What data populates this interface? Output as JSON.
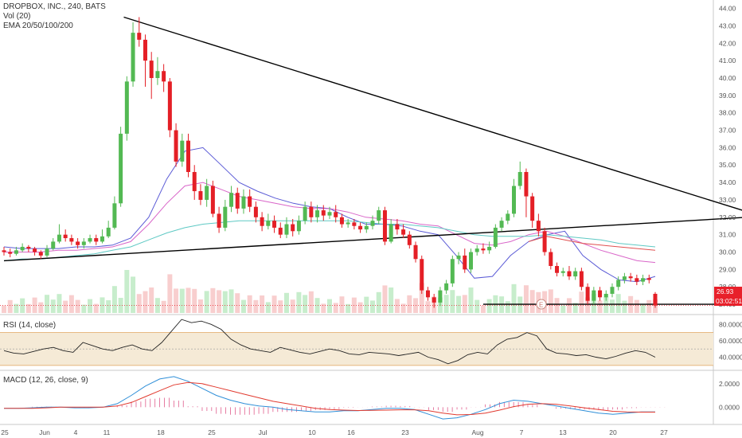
{
  "legend": {
    "title": "DROPBOX, INC., 240, BATS",
    "vol": "Vol (20)",
    "ema": "EMA 20/50/100/200"
  },
  "rsi_label": "RSI (14, close)",
  "macd_label": "MACD (12, 26, close, 9)",
  "price_tag": "26.93",
  "timer_tag": "03:02:51",
  "earnings_marker": "E",
  "chart_data": [
    {
      "type": "candlestick",
      "title": "DROPBOX, INC., 240, BATS",
      "ylim": [
        26.5,
        44.3
      ],
      "price_axis_ticks": [
        "44.00",
        "43.00",
        "42.00",
        "41.00",
        "40.00",
        "39.00",
        "38.00",
        "37.00",
        "36.00",
        "35.00",
        "34.00",
        "33.00",
        "32.00",
        "31.00",
        "30.00",
        "29.00",
        "28.00",
        "27.00"
      ],
      "x_tick_labels": [
        "25",
        "Jun",
        "4",
        "11",
        "18",
        "25",
        "Jul",
        "10",
        "16",
        "23",
        "Aug",
        "7",
        "13",
        "20",
        "27"
      ],
      "last_price": 26.93,
      "candles": [
        {
          "o": 30.1,
          "c": 30.0,
          "h": 30.3,
          "l": 29.8
        },
        {
          "o": 30.0,
          "c": 29.9,
          "h": 30.2,
          "l": 29.7
        },
        {
          "o": 29.9,
          "c": 30.1,
          "h": 30.3,
          "l": 29.8
        },
        {
          "o": 30.1,
          "c": 30.3,
          "h": 30.5,
          "l": 30.0
        },
        {
          "o": 30.3,
          "c": 30.2,
          "h": 30.4,
          "l": 30.0
        },
        {
          "o": 30.2,
          "c": 30.0,
          "h": 30.3,
          "l": 29.8
        },
        {
          "o": 30.0,
          "c": 29.8,
          "h": 30.1,
          "l": 29.6
        },
        {
          "o": 29.8,
          "c": 30.2,
          "h": 30.4,
          "l": 29.7
        },
        {
          "o": 30.2,
          "c": 30.6,
          "h": 30.8,
          "l": 30.1
        },
        {
          "o": 30.6,
          "c": 31.0,
          "h": 31.6,
          "l": 30.5
        },
        {
          "o": 31.0,
          "c": 30.8,
          "h": 31.3,
          "l": 30.6
        },
        {
          "o": 30.8,
          "c": 30.6,
          "h": 31.0,
          "l": 30.4
        },
        {
          "o": 30.6,
          "c": 30.4,
          "h": 30.8,
          "l": 30.2
        },
        {
          "o": 30.4,
          "c": 30.6,
          "h": 30.8,
          "l": 30.2
        },
        {
          "o": 30.6,
          "c": 30.8,
          "h": 31.0,
          "l": 30.5
        },
        {
          "o": 30.8,
          "c": 30.6,
          "h": 31.0,
          "l": 30.4
        },
        {
          "o": 30.6,
          "c": 30.9,
          "h": 31.3,
          "l": 30.5
        },
        {
          "o": 30.9,
          "c": 31.4,
          "h": 31.8,
          "l": 30.8
        },
        {
          "o": 31.4,
          "c": 32.8,
          "h": 33.2,
          "l": 31.3
        },
        {
          "o": 32.8,
          "c": 36.8,
          "h": 37.2,
          "l": 32.6
        },
        {
          "o": 36.8,
          "c": 39.8,
          "h": 40.1,
          "l": 36.4
        },
        {
          "o": 39.8,
          "c": 42.6,
          "h": 43.2,
          "l": 39.5
        },
        {
          "o": 42.6,
          "c": 42.2,
          "h": 43.5,
          "l": 41.8
        },
        {
          "o": 42.2,
          "c": 41.0,
          "h": 42.5,
          "l": 39.5
        },
        {
          "o": 41.0,
          "c": 40.0,
          "h": 41.5,
          "l": 38.8
        },
        {
          "o": 40.0,
          "c": 40.4,
          "h": 41.2,
          "l": 39.6
        },
        {
          "o": 40.4,
          "c": 39.8,
          "h": 40.8,
          "l": 39.2
        },
        {
          "o": 39.8,
          "c": 37.0,
          "h": 40.0,
          "l": 36.6
        },
        {
          "o": 37.0,
          "c": 35.2,
          "h": 37.4,
          "l": 34.9
        },
        {
          "o": 35.2,
          "c": 36.4,
          "h": 36.8,
          "l": 34.9
        },
        {
          "o": 36.4,
          "c": 34.6,
          "h": 36.8,
          "l": 34.3
        },
        {
          "o": 34.6,
          "c": 33.5,
          "h": 35.0,
          "l": 33.0
        },
        {
          "o": 33.5,
          "c": 33.0,
          "h": 33.9,
          "l": 32.7
        },
        {
          "o": 33.0,
          "c": 33.8,
          "h": 34.2,
          "l": 32.6
        },
        {
          "o": 33.8,
          "c": 32.2,
          "h": 34.1,
          "l": 32.0
        },
        {
          "o": 32.2,
          "c": 31.4,
          "h": 32.6,
          "l": 31.1
        },
        {
          "o": 31.4,
          "c": 32.6,
          "h": 33.0,
          "l": 31.2
        },
        {
          "o": 32.6,
          "c": 33.4,
          "h": 33.8,
          "l": 32.3
        },
        {
          "o": 33.4,
          "c": 32.5,
          "h": 33.7,
          "l": 32.2
        },
        {
          "o": 32.5,
          "c": 33.2,
          "h": 33.6,
          "l": 32.2
        },
        {
          "o": 33.2,
          "c": 32.6,
          "h": 33.6,
          "l": 32.3
        },
        {
          "o": 32.6,
          "c": 32.0,
          "h": 32.9,
          "l": 31.7
        },
        {
          "o": 32.0,
          "c": 31.5,
          "h": 32.3,
          "l": 31.2
        },
        {
          "o": 31.5,
          "c": 31.8,
          "h": 32.2,
          "l": 31.3
        },
        {
          "o": 31.8,
          "c": 31.4,
          "h": 32.1,
          "l": 31.1
        },
        {
          "o": 31.4,
          "c": 31.0,
          "h": 31.7,
          "l": 30.8
        },
        {
          "o": 31.0,
          "c": 31.6,
          "h": 32.0,
          "l": 30.8
        },
        {
          "o": 31.6,
          "c": 31.2,
          "h": 31.9,
          "l": 30.9
        },
        {
          "o": 31.2,
          "c": 31.8,
          "h": 32.1,
          "l": 31.0
        },
        {
          "o": 31.8,
          "c": 32.6,
          "h": 32.9,
          "l": 31.6
        },
        {
          "o": 32.6,
          "c": 32.0,
          "h": 32.9,
          "l": 31.7
        },
        {
          "o": 32.0,
          "c": 32.4,
          "h": 32.7,
          "l": 31.7
        },
        {
          "o": 32.4,
          "c": 32.1,
          "h": 32.7,
          "l": 31.8
        },
        {
          "o": 32.1,
          "c": 32.3,
          "h": 32.6,
          "l": 31.9
        },
        {
          "o": 32.3,
          "c": 32.0,
          "h": 32.7,
          "l": 31.7
        },
        {
          "o": 32.0,
          "c": 31.6,
          "h": 32.2,
          "l": 31.4
        },
        {
          "o": 31.6,
          "c": 31.7,
          "h": 31.9,
          "l": 31.4
        },
        {
          "o": 31.7,
          "c": 31.5,
          "h": 31.9,
          "l": 31.3
        },
        {
          "o": 31.5,
          "c": 31.3,
          "h": 31.7,
          "l": 31.1
        },
        {
          "o": 31.3,
          "c": 31.5,
          "h": 31.7,
          "l": 31.1
        },
        {
          "o": 31.5,
          "c": 31.8,
          "h": 32.1,
          "l": 31.3
        },
        {
          "o": 31.8,
          "c": 32.4,
          "h": 32.6,
          "l": 31.6
        },
        {
          "o": 32.4,
          "c": 30.6,
          "h": 32.6,
          "l": 30.4
        },
        {
          "o": 30.6,
          "c": 31.6,
          "h": 31.9,
          "l": 30.5
        },
        {
          "o": 31.6,
          "c": 31.3,
          "h": 31.9,
          "l": 31.0
        },
        {
          "o": 31.3,
          "c": 31.0,
          "h": 31.6,
          "l": 30.8
        },
        {
          "o": 31.0,
          "c": 30.4,
          "h": 31.2,
          "l": 30.2
        },
        {
          "o": 30.4,
          "c": 29.6,
          "h": 30.6,
          "l": 29.4
        },
        {
          "o": 29.6,
          "c": 27.8,
          "h": 29.8,
          "l": 27.6
        },
        {
          "o": 27.8,
          "c": 27.4,
          "h": 28.0,
          "l": 27.2
        },
        {
          "o": 27.4,
          "c": 27.1,
          "h": 27.6,
          "l": 26.8
        },
        {
          "o": 27.1,
          "c": 27.8,
          "h": 28.0,
          "l": 26.9
        },
        {
          "o": 27.8,
          "c": 28.2,
          "h": 28.4,
          "l": 27.6
        },
        {
          "o": 28.2,
          "c": 29.6,
          "h": 29.8,
          "l": 28.0
        },
        {
          "o": 29.6,
          "c": 29.8,
          "h": 30.0,
          "l": 29.3
        },
        {
          "o": 29.8,
          "c": 29.0,
          "h": 30.2,
          "l": 28.8
        },
        {
          "o": 29.0,
          "c": 30.0,
          "h": 30.2,
          "l": 28.8
        },
        {
          "o": 30.0,
          "c": 30.2,
          "h": 30.4,
          "l": 29.8
        },
        {
          "o": 30.2,
          "c": 30.1,
          "h": 30.5,
          "l": 29.9
        },
        {
          "o": 30.1,
          "c": 30.3,
          "h": 30.6,
          "l": 29.9
        },
        {
          "o": 30.3,
          "c": 31.4,
          "h": 31.6,
          "l": 30.2
        },
        {
          "o": 31.4,
          "c": 31.8,
          "h": 32.0,
          "l": 31.2
        },
        {
          "o": 31.8,
          "c": 32.2,
          "h": 32.4,
          "l": 31.6
        },
        {
          "o": 32.2,
          "c": 33.8,
          "h": 34.2,
          "l": 32.0
        },
        {
          "o": 33.8,
          "c": 34.6,
          "h": 35.2,
          "l": 33.6
        },
        {
          "o": 34.6,
          "c": 33.2,
          "h": 34.8,
          "l": 32.0
        },
        {
          "o": 33.2,
          "c": 31.8,
          "h": 33.4,
          "l": 31.4
        },
        {
          "o": 31.8,
          "c": 31.2,
          "h": 32.2,
          "l": 30.9
        },
        {
          "o": 31.2,
          "c": 30.0,
          "h": 31.4,
          "l": 29.8
        },
        {
          "o": 30.0,
          "c": 29.2,
          "h": 30.2,
          "l": 29.0
        },
        {
          "o": 29.2,
          "c": 28.8,
          "h": 29.4,
          "l": 28.6
        },
        {
          "o": 28.8,
          "c": 28.9,
          "h": 29.1,
          "l": 28.6
        },
        {
          "o": 28.9,
          "c": 28.6,
          "h": 29.2,
          "l": 28.4
        },
        {
          "o": 28.6,
          "c": 28.9,
          "h": 29.1,
          "l": 28.4
        },
        {
          "o": 28.9,
          "c": 28.0,
          "h": 29.1,
          "l": 27.8
        },
        {
          "o": 28.0,
          "c": 27.2,
          "h": 28.2,
          "l": 27.0
        },
        {
          "o": 27.2,
          "c": 27.8,
          "h": 28.0,
          "l": 27.0
        },
        {
          "o": 27.8,
          "c": 27.4,
          "h": 28.0,
          "l": 27.2
        },
        {
          "o": 27.4,
          "c": 27.6,
          "h": 27.8,
          "l": 27.2
        },
        {
          "o": 27.6,
          "c": 28.0,
          "h": 28.2,
          "l": 27.4
        },
        {
          "o": 28.0,
          "c": 28.4,
          "h": 28.6,
          "l": 27.8
        },
        {
          "o": 28.4,
          "c": 28.6,
          "h": 28.8,
          "l": 28.2
        },
        {
          "o": 28.6,
          "c": 28.5,
          "h": 28.8,
          "l": 28.3
        },
        {
          "o": 28.5,
          "c": 28.3,
          "h": 28.7,
          "l": 28.1
        },
        {
          "o": 28.3,
          "c": 28.5,
          "h": 28.7,
          "l": 28.1
        },
        {
          "o": 28.5,
          "c": 28.4,
          "h": 28.7,
          "l": 28.2
        },
        {
          "o": 27.6,
          "c": 26.93,
          "h": 27.7,
          "l": 26.8
        }
      ],
      "ema": [
        {
          "name": "EMA 20",
          "color": "#5b5bd6",
          "values": [
            30.3,
            30.2,
            30.2,
            30.2,
            30.3,
            30.3,
            30.4,
            30.8,
            32.0,
            34.2,
            35.8,
            36.0,
            35.0,
            34.0,
            33.5,
            33.1,
            32.8,
            32.6,
            32.5,
            32.0,
            31.6,
            31.6,
            31.5,
            31.2,
            31.0,
            29.8,
            28.5,
            28.6,
            29.8,
            30.6,
            31.0,
            31.2,
            29.8,
            29.0,
            28.4,
            28.3,
            28.6
          ]
        },
        {
          "name": "EMA 50",
          "color": "#d966c9",
          "values": [
            30.0,
            30.0,
            30.0,
            30.1,
            30.1,
            30.2,
            30.3,
            30.6,
            31.6,
            32.8,
            33.8,
            34.0,
            33.6,
            33.2,
            33.0,
            32.8,
            32.6,
            32.5,
            32.5,
            32.3,
            32.0,
            31.9,
            31.8,
            31.6,
            31.5,
            31.0,
            30.5,
            30.4,
            30.6,
            31.0,
            31.2,
            30.9,
            30.5,
            30.1,
            29.8,
            29.5,
            29.4
          ]
        },
        {
          "name": "EMA 100",
          "color": "#e05050",
          "values": [
            null,
            null,
            null,
            null,
            null,
            null,
            null,
            null,
            null,
            null,
            null,
            null,
            null,
            null,
            null,
            null,
            null,
            null,
            null,
            null,
            null,
            null,
            null,
            null,
            null,
            null,
            null,
            null,
            null,
            30.6,
            30.9,
            30.7,
            30.5,
            30.4,
            30.3,
            30.2,
            30.1
          ]
        },
        {
          "name": "EMA 200",
          "color": "#5ec9c4",
          "values": [
            29.5,
            29.6,
            29.6,
            29.7,
            29.8,
            29.9,
            30.1,
            30.3,
            30.7,
            31.1,
            31.4,
            31.6,
            31.7,
            31.8,
            31.8,
            31.8,
            31.8,
            31.8,
            31.8,
            31.8,
            31.7,
            31.6,
            31.6,
            31.5,
            31.4,
            31.2,
            31.0,
            30.9,
            30.9,
            30.9,
            31.0,
            30.9,
            30.8,
            30.7,
            30.5,
            30.4,
            30.3
          ]
        }
      ],
      "trendlines": [
        {
          "from": [
            0,
            29.5
          ],
          "to": [
            121,
            32.0
          ],
          "color": "#000000"
        },
        {
          "from": [
            19.5,
            43.5
          ],
          "to": [
            122,
            32.2
          ],
          "color": "#000000"
        },
        {
          "from": [
            78,
            27.0
          ],
          "to": [
            118,
            27.0
          ],
          "color": "#000000"
        }
      ]
    },
    {
      "type": "line",
      "title": "RSI (14, close)",
      "ylim": [
        25,
        90
      ],
      "y_tick_labels": [
        "80.0000",
        "60.0000",
        "40.0000"
      ],
      "bands": [
        70,
        50,
        30
      ],
      "values": [
        48,
        45,
        44,
        47,
        50,
        52,
        48,
        46,
        58,
        54,
        50,
        48,
        52,
        55,
        50,
        48,
        58,
        72,
        86,
        82,
        84,
        80,
        74,
        62,
        55,
        50,
        48,
        46,
        52,
        49,
        46,
        44,
        47,
        50,
        48,
        44,
        43,
        46,
        45,
        44,
        42,
        44,
        46,
        40,
        37,
        32,
        36,
        43,
        46,
        44,
        55,
        62,
        64,
        70,
        66,
        50,
        45,
        44,
        42,
        43,
        40,
        38,
        41,
        45,
        48,
        46,
        40
      ]
    },
    {
      "type": "line",
      "title": "MACD (12, 26, close, 9)",
      "ylim": [
        -1.4,
        3.0
      ],
      "y_tick_labels": [
        "2.0000",
        "0.0000"
      ],
      "macd": [
        -0.1,
        -0.1,
        -0.05,
        0.0,
        0.0,
        -0.05,
        -0.05,
        0.0,
        0.3,
        1.0,
        1.8,
        2.4,
        2.6,
        2.2,
        1.6,
        1.0,
        0.6,
        0.3,
        0.1,
        0.0,
        -0.2,
        -0.3,
        -0.4,
        -0.4,
        -0.3,
        -0.3,
        -0.2,
        -0.1,
        -0.1,
        -0.2,
        -0.6,
        -1.0,
        -0.9,
        -0.6,
        -0.2,
        0.3,
        0.6,
        0.5,
        0.3,
        0.1,
        -0.1,
        -0.3,
        -0.5,
        -0.6,
        -0.5,
        -0.4,
        -0.4
      ],
      "signal": [
        -0.1,
        -0.1,
        -0.1,
        -0.05,
        0.0,
        0.0,
        0.0,
        0.0,
        0.1,
        0.4,
        0.9,
        1.4,
        1.9,
        2.1,
        2.0,
        1.7,
        1.4,
        1.1,
        0.8,
        0.5,
        0.3,
        0.1,
        -0.1,
        -0.2,
        -0.25,
        -0.28,
        -0.27,
        -0.25,
        -0.22,
        -0.22,
        -0.3,
        -0.5,
        -0.65,
        -0.62,
        -0.5,
        -0.25,
        0.05,
        0.25,
        0.3,
        0.25,
        0.1,
        -0.05,
        -0.2,
        -0.35,
        -0.4,
        -0.42,
        -0.42
      ]
    }
  ]
}
